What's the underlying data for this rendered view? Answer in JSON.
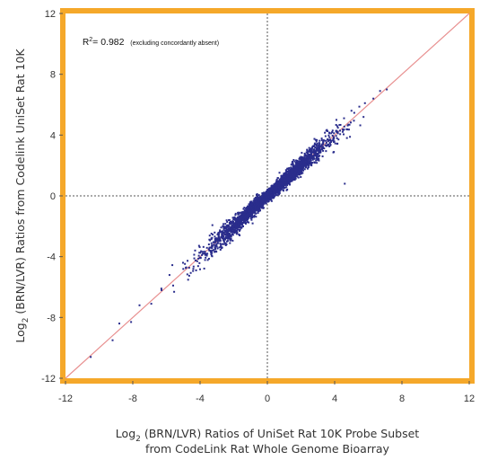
{
  "chart_data": {
    "type": "scatter",
    "title": "",
    "xlabel_prefix": "Log",
    "xlabel_sub": "2",
    "xlabel_line1_rest": " (BRN/LVR) Ratios of UniSet Rat 10K Probe Subset",
    "xlabel_line2": "from CodeLink Rat Whole Genome Bioarray",
    "ylabel_prefix": "Log",
    "ylabel_sub": "2",
    "ylabel_rest": " (BRN/LVR) Ratios from Codelink UniSet Rat 10K",
    "xlim": [
      -12,
      12
    ],
    "ylim": [
      -12,
      12
    ],
    "xticks": [
      -12,
      -8,
      -4,
      0,
      4,
      8,
      12
    ],
    "yticks": [
      -12,
      -8,
      -4,
      0,
      4,
      8,
      12
    ],
    "reference_lines": {
      "x": 0,
      "y": 0,
      "style": "dashed"
    },
    "identity_line": {
      "from": [
        -12,
        -12
      ],
      "to": [
        12,
        12
      ]
    },
    "annotation": {
      "r_label": "R",
      "r_sup": "2",
      "r_value": "= 0.982",
      "note": "(excluding concordantly absent)"
    },
    "colors": {
      "frame": "#f5a82a",
      "points": "#2a2d8c",
      "identity_line": "#e89090",
      "reference_lines": "#555555"
    },
    "points_description": "dense cloud along y = x from about -10 to 7",
    "points_x_range": [
      -10.5,
      7.2
    ]
  }
}
